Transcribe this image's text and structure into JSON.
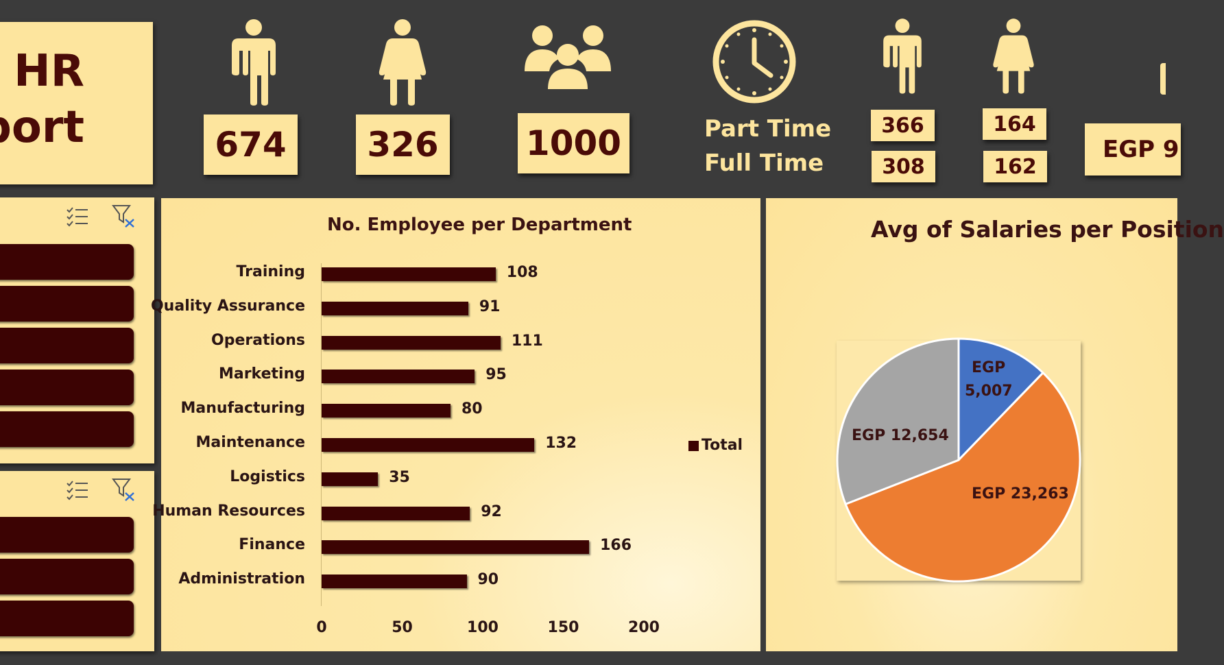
{
  "header": {
    "title_line1": "HR",
    "title_line2": "port",
    "kpis": {
      "male_count": "674",
      "female_count": "326",
      "total_count": "1000",
      "part_time_label": "Part Time",
      "full_time_label": "Full Time",
      "male_part_time": "366",
      "male_full_time": "308",
      "female_part_time": "164",
      "female_full_time": "162",
      "salary_partial": "EGP 9"
    }
  },
  "colors": {
    "accent": "#fde59e",
    "dark_bar": "#3c0303",
    "text_dark": "#4a0b07",
    "background": "#3b3b3b",
    "pie_blue": "#4472c4",
    "pie_orange": "#ed7d31",
    "pie_gray": "#a5a5a5"
  },
  "slicers": {
    "icons": [
      "multi-select-icon",
      "clear-filter-icon"
    ]
  },
  "chart_data": [
    {
      "type": "bar",
      "orientation": "horizontal",
      "title": "No. Employee per Department",
      "categories": [
        "Training",
        "Quality Assurance",
        "Operations",
        "Marketing",
        "Manufacturing",
        "Maintenance",
        "Logistics",
        "Human Resources",
        "Finance",
        "Administration"
      ],
      "values": [
        108,
        91,
        111,
        95,
        80,
        132,
        35,
        92,
        166,
        90
      ],
      "value_labels": [
        "108",
        "91",
        "111",
        "95",
        "80",
        "132",
        "35",
        "92",
        "166",
        "90"
      ],
      "xlim": [
        0,
        200
      ],
      "xticks": [
        "0",
        "50",
        "100",
        "150",
        "200"
      ],
      "legend": "Total",
      "legend_position": "right"
    },
    {
      "type": "pie",
      "title": "Avg of Salaries per Position",
      "values": [
        5007,
        23263,
        12654
      ],
      "labels": [
        "EGP 5,007",
        "EGP 23,263",
        "EGP 12,654"
      ],
      "label_blue_line1": "EGP",
      "label_blue_line2": "5,007"
    }
  ]
}
